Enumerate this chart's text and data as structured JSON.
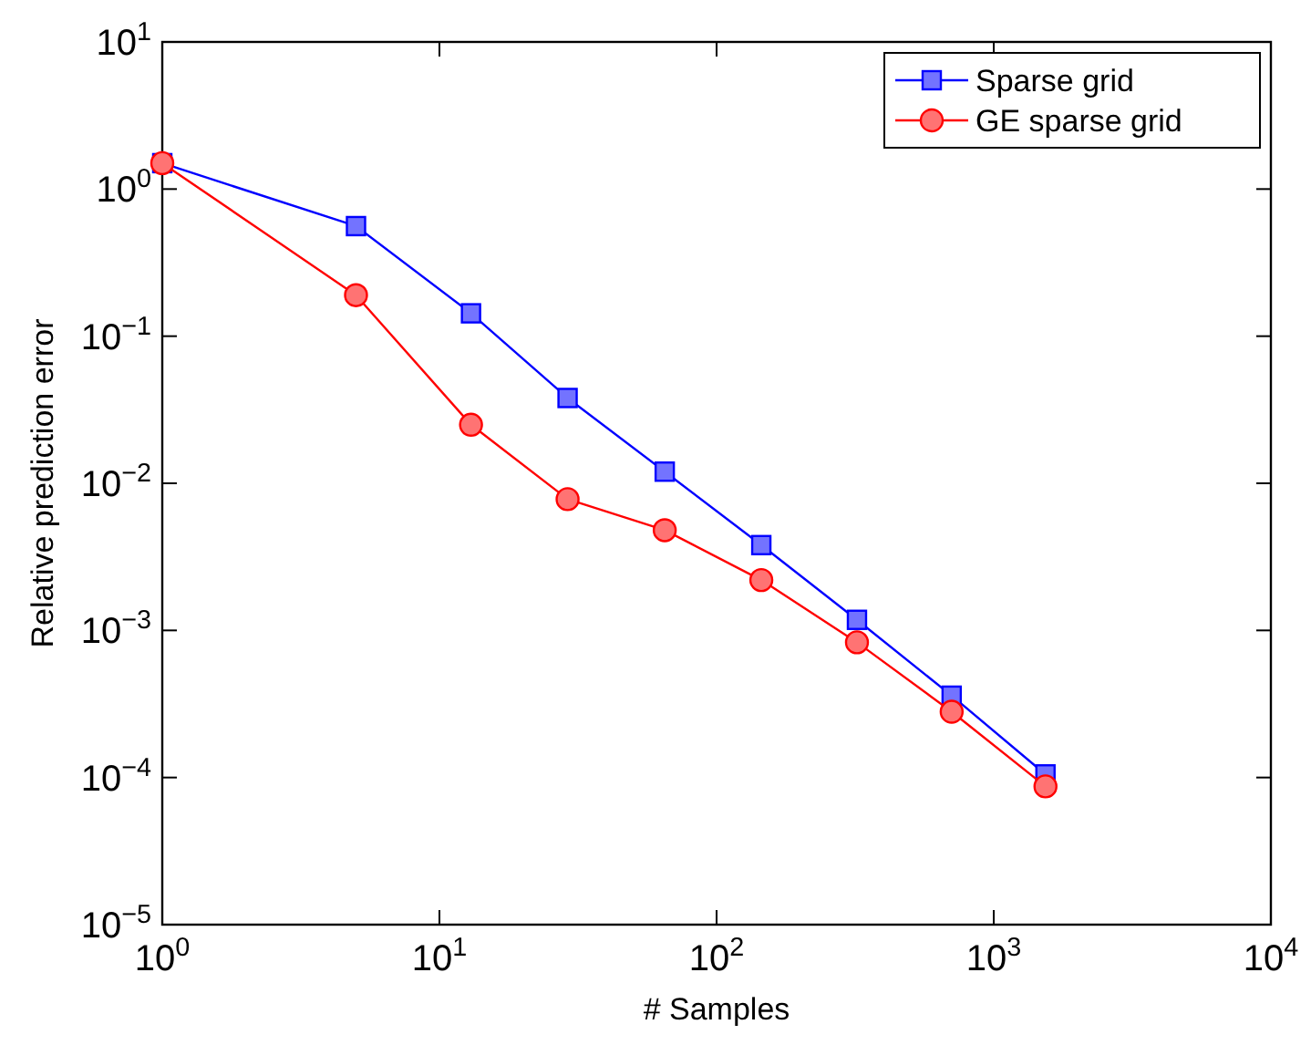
{
  "chart_data": {
    "type": "line",
    "xlabel": "# Samples",
    "ylabel": "Relative prediction error",
    "log": "xy",
    "grid": false,
    "legend": "top right",
    "xlim": [
      1,
      10000
    ],
    "ylim": [
      1e-05,
      10
    ],
    "xticks": [
      {
        "value": 1,
        "label": "10$^{0}$"
      },
      {
        "value": 10,
        "label": "10$^{1}$"
      },
      {
        "value": 100,
        "label": "10$^{2}$"
      },
      {
        "value": 1000,
        "label": "10$^{3}$"
      },
      {
        "value": 10000,
        "label": "10$^{4}$"
      }
    ],
    "yticks": [
      {
        "value": 1e-05,
        "label": "10$^{−5}$"
      },
      {
        "value": 0.0001,
        "label": "10$^{−4}$"
      },
      {
        "value": 0.001,
        "label": "10$^{−3}$"
      },
      {
        "value": 0.01,
        "label": "10$^{−2}$"
      },
      {
        "value": 0.1,
        "label": "10$^{−1}$"
      },
      {
        "value": 1,
        "label": "10$^{0}$"
      },
      {
        "value": 10,
        "label": "10$^{1}$"
      }
    ],
    "x": [
      1,
      5,
      13,
      29,
      65,
      145,
      321,
      705,
      1537
    ],
    "series": [
      {
        "name": "Sparse grid",
        "color": "#0000ff",
        "marker": "square",
        "values": [
          1.5,
          0.56,
          0.143,
          0.038,
          0.012,
          0.0038,
          0.00118,
          0.00036,
          0.000105
        ]
      },
      {
        "name": "GE sparse grid",
        "color": "#ff0000",
        "marker": "circle",
        "values": [
          1.5,
          0.19,
          0.025,
          0.0078,
          0.0048,
          0.0022,
          0.00083,
          0.00028,
          8.7e-05
        ]
      }
    ]
  }
}
